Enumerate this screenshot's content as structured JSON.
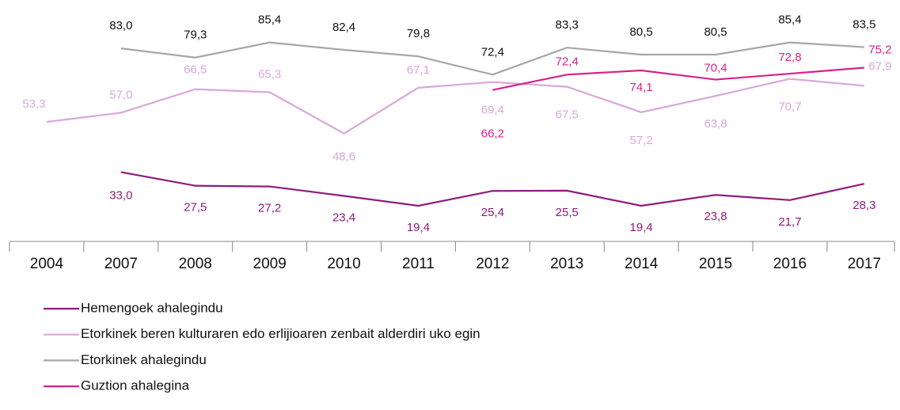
{
  "chart_data": {
    "type": "line",
    "categories": [
      "2004",
      "2007",
      "2008",
      "2009",
      "2010",
      "2011",
      "2012",
      "2013",
      "2014",
      "2015",
      "2016",
      "2017"
    ],
    "ylim": [
      5,
      100
    ],
    "series": [
      {
        "name": "Hemengoek ahalegindu",
        "color": "#8e1b7c",
        "values": [
          null,
          33.0,
          27.5,
          27.2,
          23.4,
          19.4,
          25.4,
          25.5,
          19.4,
          23.8,
          21.7,
          28.3
        ],
        "value_labels": [
          null,
          "33,0",
          "27,5",
          "27,2",
          "23,4",
          "19,4",
          "25,4",
          "25,5",
          "19,4",
          "23,8",
          "21,7",
          "28,3"
        ]
      },
      {
        "name": "Etorkinek beren kulturaren edo erlijioaren zenbait alderdiri uko egin",
        "color": "#d8a8d8",
        "values": [
          53.3,
          57.0,
          66.5,
          65.3,
          48.6,
          67.1,
          69.4,
          67.5,
          57.2,
          63.8,
          70.7,
          67.9
        ],
        "value_labels": [
          "53,3",
          "57,0",
          "66,5",
          "65,3",
          "48,6",
          "67,1",
          "69,4",
          "67,5",
          "57,2",
          "63,8",
          "70,7",
          "67,9"
        ]
      },
      {
        "name": "Etorkinek ahalegindu",
        "color": "#a6a6a6",
        "values": [
          null,
          83.0,
          79.3,
          85.4,
          82.4,
          79.8,
          72.4,
          83.3,
          80.5,
          80.5,
          85.4,
          83.5
        ],
        "value_labels": [
          null,
          "83,0",
          "79,3",
          "85,4",
          "82,4",
          "79,8",
          "72,4",
          "83,3",
          "80,5",
          "80,5",
          "85,4",
          "83,5"
        ]
      },
      {
        "name": "Guztion ahalegina",
        "color": "#d4228e",
        "values": [
          null,
          null,
          null,
          null,
          null,
          null,
          66.2,
          72.4,
          74.1,
          70.4,
          72.8,
          75.2
        ],
        "value_labels": [
          null,
          null,
          null,
          null,
          null,
          null,
          "66,2",
          "72,4",
          "74,1",
          "70,4",
          "72,8",
          "75,2"
        ]
      }
    ]
  }
}
